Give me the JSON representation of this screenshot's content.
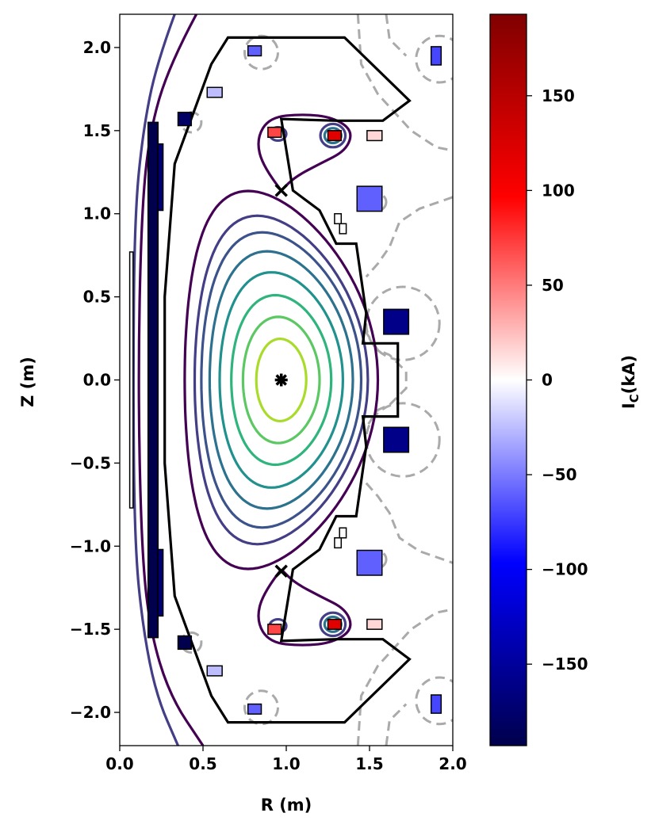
{
  "chart_data": {
    "type": "contour",
    "xlabel": "R (m)",
    "ylabel": "Z (m)",
    "xlim": [
      0.0,
      2.0
    ],
    "ylim": [
      -2.2,
      2.2
    ],
    "x_ticks": [
      0.0,
      0.5,
      1.0,
      1.5,
      2.0
    ],
    "x_tick_labels": [
      "0.0",
      "0.5",
      "1.0",
      "1.5",
      "2.0"
    ],
    "y_ticks": [
      2.0,
      1.5,
      1.0,
      0.5,
      0.0,
      -0.5,
      -1.0,
      -1.5,
      -2.0
    ],
    "y_tick_labels": [
      "2.0",
      "1.5",
      "1.0",
      "0.5",
      "0.0",
      "−0.5",
      "−1.0",
      "−1.5",
      "−2.0"
    ],
    "colorbar": {
      "label_main": "I",
      "label_sub": "C",
      "label_rest": "(kA)",
      "range": [
        -193,
        193
      ],
      "ticks": [
        150,
        100,
        50,
        0,
        -50,
        -100,
        -150
      ],
      "tick_labels": [
        "150",
        "100",
        "50",
        "0",
        "−50",
        "−100",
        "−150"
      ],
      "colormap": "seismic"
    },
    "magnetic_axis": {
      "R": 0.97,
      "Z": 0.0
    },
    "x_points": [
      {
        "R": 0.97,
        "Z": 1.14
      },
      {
        "R": 0.97,
        "Z": -1.15
      }
    ],
    "flux_surfaces": [
      {
        "color": "#a9dc2a",
        "a": 0.15,
        "kappa": 1.65,
        "delta": 0.05
      },
      {
        "color": "#5cc863",
        "a": 0.23,
        "kappa": 1.65,
        "delta": 0.08
      },
      {
        "color": "#2fb47c",
        "a": 0.3,
        "kappa": 1.7,
        "delta": 0.12
      },
      {
        "color": "#21918d",
        "a": 0.37,
        "kappa": 1.75,
        "delta": 0.16
      },
      {
        "color": "#2c728e",
        "a": 0.43,
        "kappa": 1.8,
        "delta": 0.2
      },
      {
        "color": "#3b528b",
        "a": 0.48,
        "kappa": 1.85,
        "delta": 0.24
      },
      {
        "color": "#433e85",
        "a": 0.52,
        "kappa": 1.9,
        "delta": 0.28
      }
    ],
    "colors": {
      "wall": "#000000",
      "separatrix": "#440154",
      "outer_flux_1": "#440154",
      "outer_flux_2": "#433e85",
      "field_null_dashed": "#aaaaaa"
    },
    "wall_outline": [
      [
        0.33,
        1.3
      ],
      [
        0.33,
        1.3
      ],
      [
        0.55,
        1.9
      ],
      [
        0.65,
        2.06
      ],
      [
        1.1,
        2.06
      ],
      [
        1.35,
        2.06
      ],
      [
        1.74,
        1.68
      ],
      [
        1.58,
        1.56
      ],
      [
        1.3,
        1.56
      ],
      [
        0.97,
        1.57
      ],
      [
        1.04,
        1.14
      ],
      [
        1.2,
        1.02
      ],
      [
        1.3,
        0.82
      ],
      [
        1.42,
        0.82
      ],
      [
        1.48,
        0.4
      ],
      [
        1.46,
        0.22
      ],
      [
        1.67,
        0.22
      ],
      [
        1.67,
        -0.22
      ],
      [
        1.46,
        -0.22
      ],
      [
        1.48,
        -0.4
      ],
      [
        1.42,
        -0.82
      ],
      [
        1.3,
        -0.82
      ],
      [
        1.2,
        -1.02
      ],
      [
        1.04,
        -1.14
      ],
      [
        0.97,
        -1.57
      ],
      [
        1.3,
        -1.56
      ],
      [
        1.58,
        -1.56
      ],
      [
        1.74,
        -1.68
      ],
      [
        1.35,
        -2.06
      ],
      [
        1.1,
        -2.06
      ],
      [
        0.65,
        -2.06
      ],
      [
        0.55,
        -1.9
      ],
      [
        0.33,
        -1.3
      ],
      [
        0.27,
        -0.5
      ],
      [
        0.27,
        0.5
      ]
    ],
    "coils": [
      {
        "R": 0.81,
        "Z": 1.98,
        "w": 0.08,
        "h": 0.06,
        "I": -60
      },
      {
        "R": 0.81,
        "Z": -1.98,
        "w": 0.08,
        "h": 0.06,
        "I": -60
      },
      {
        "R": 1.9,
        "Z": 1.95,
        "w": 0.06,
        "h": 0.11,
        "I": -70
      },
      {
        "R": 1.9,
        "Z": -1.95,
        "w": 0.06,
        "h": 0.11,
        "I": -70
      },
      {
        "R": 0.57,
        "Z": 1.73,
        "w": 0.09,
        "h": 0.06,
        "I": -25
      },
      {
        "R": 0.57,
        "Z": -1.75,
        "w": 0.09,
        "h": 0.06,
        "I": -25
      },
      {
        "R": 0.39,
        "Z": 1.57,
        "w": 0.08,
        "h": 0.08,
        "I": -180
      },
      {
        "R": 0.39,
        "Z": -1.58,
        "w": 0.08,
        "h": 0.08,
        "I": -193
      },
      {
        "R": 0.93,
        "Z": 1.49,
        "w": 0.08,
        "h": 0.06,
        "I": 70
      },
      {
        "R": 0.93,
        "Z": -1.5,
        "w": 0.08,
        "h": 0.06,
        "I": 70
      },
      {
        "R": 1.29,
        "Z": 1.47,
        "w": 0.08,
        "h": 0.06,
        "I": 120
      },
      {
        "R": 1.29,
        "Z": -1.47,
        "w": 0.08,
        "h": 0.06,
        "I": 120
      },
      {
        "R": 1.53,
        "Z": 1.47,
        "w": 0.09,
        "h": 0.06,
        "I": 15
      },
      {
        "R": 1.53,
        "Z": -1.47,
        "w": 0.09,
        "h": 0.06,
        "I": 15
      },
      {
        "R": 1.5,
        "Z": 1.09,
        "w": 0.15,
        "h": 0.15,
        "I": -60
      },
      {
        "R": 1.5,
        "Z": -1.1,
        "w": 0.15,
        "h": 0.15,
        "I": -60
      },
      {
        "R": 1.66,
        "Z": 0.35,
        "w": 0.15,
        "h": 0.15,
        "I": -160
      },
      {
        "R": 1.66,
        "Z": -0.36,
        "w": 0.15,
        "h": 0.15,
        "I": -160
      },
      {
        "R": 1.31,
        "Z": 0.97,
        "w": 0.04,
        "h": 0.06,
        "I": 0
      },
      {
        "R": 1.34,
        "Z": 0.91,
        "w": 0.04,
        "h": 0.06,
        "I": 0
      },
      {
        "R": 1.31,
        "Z": -0.98,
        "w": 0.04,
        "h": 0.06,
        "I": 0
      },
      {
        "R": 1.34,
        "Z": -0.92,
        "w": 0.04,
        "h": 0.06,
        "I": 0
      }
    ],
    "central_solenoid": [
      {
        "R": 0.2,
        "Z": 0.0,
        "w": 0.06,
        "h": 3.1,
        "I": -193
      },
      {
        "R": 0.245,
        "Z": 1.22,
        "w": 0.03,
        "h": 0.4,
        "I": -170
      },
      {
        "R": 0.245,
        "Z": -1.22,
        "w": 0.03,
        "h": 0.4,
        "I": -170
      },
      {
        "R": 0.07,
        "Z": 0.0,
        "w": 0.02,
        "h": 1.54,
        "I": 0
      }
    ]
  }
}
